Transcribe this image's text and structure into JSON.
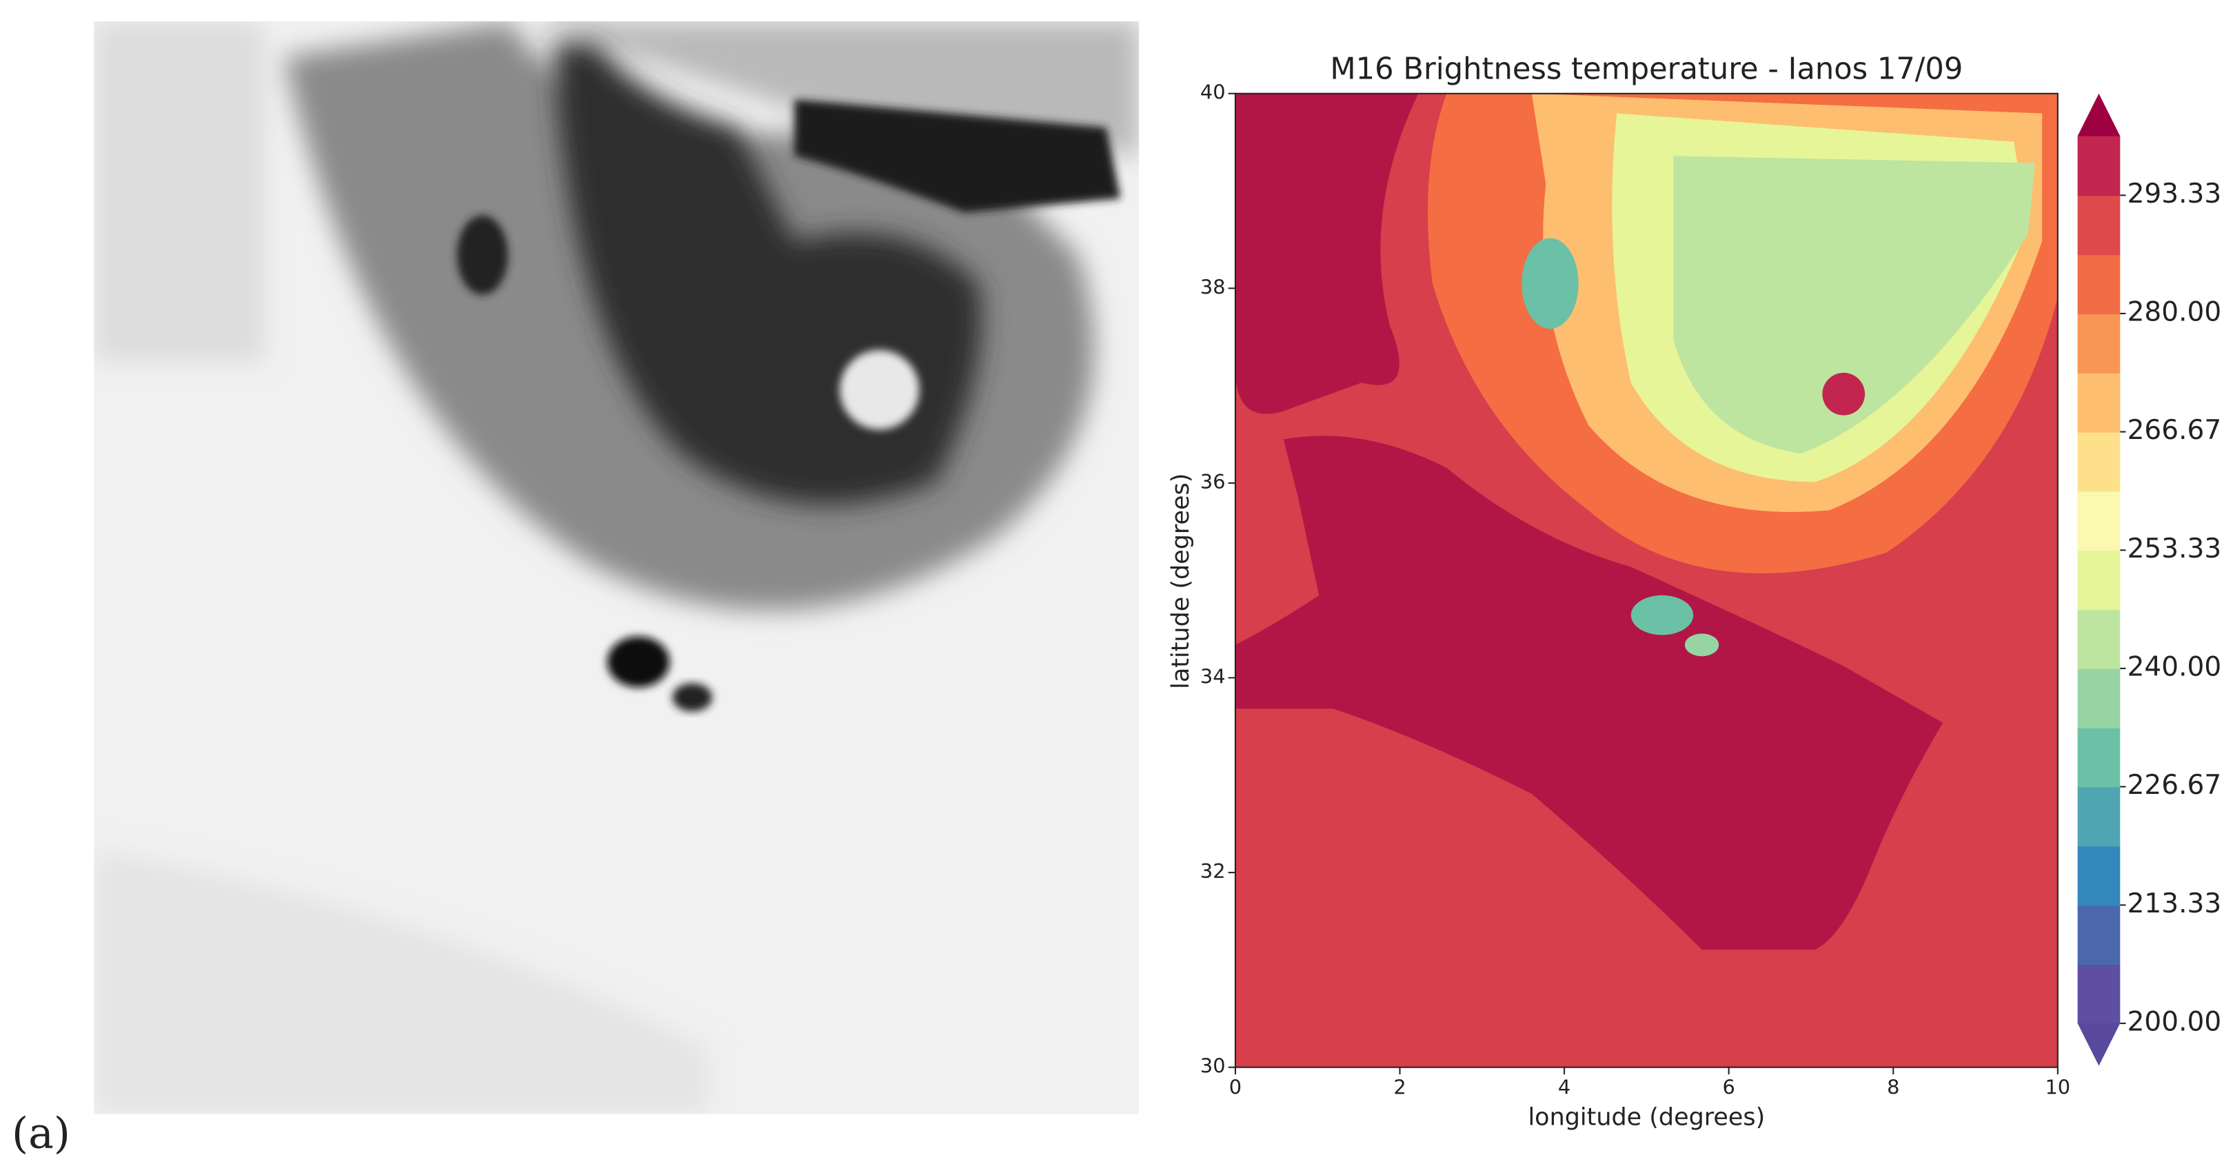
{
  "panel_label": "(a)",
  "chart_data": {
    "type": "contour",
    "title": "M16 Brightness temperature - Ianos 17/09",
    "x_label": "longitude (degrees)",
    "y_label": "latitude (degrees)",
    "xlim": [
      0,
      10
    ],
    "ylim": [
      30,
      40
    ],
    "xticks": [
      0,
      2,
      4,
      6,
      8,
      10
    ],
    "yticks": [
      30,
      32,
      34,
      36,
      38,
      40
    ],
    "colorbar": {
      "clim": [
        200,
        300
      ],
      "extend": "both",
      "colors": [
        "#5e4fa2",
        "#4b68ad",
        "#3288bd",
        "#4fa5b1",
        "#6bc1a5",
        "#96d4a4",
        "#bee5a0",
        "#e6f598",
        "#fbf8b0",
        "#fee08b",
        "#fdbe6f",
        "#f99555",
        "#f16b45",
        "#de4a4c",
        "#c2254f"
      ],
      "extend_colors": [
        "#5a4a9e",
        "#9e0142"
      ],
      "ticks": [
        {
          "value": 200,
          "label": "200.00"
        },
        {
          "value": 213.33,
          "label": "213.33"
        },
        {
          "value": 226.67,
          "label": "226.67"
        },
        {
          "value": 240,
          "label": "240.00"
        },
        {
          "value": 253.33,
          "label": "253.33"
        },
        {
          "value": 266.67,
          "label": "266.67"
        },
        {
          "value": 280,
          "label": "280.00"
        },
        {
          "value": 293.33,
          "label": "293.33"
        }
      ]
    }
  }
}
